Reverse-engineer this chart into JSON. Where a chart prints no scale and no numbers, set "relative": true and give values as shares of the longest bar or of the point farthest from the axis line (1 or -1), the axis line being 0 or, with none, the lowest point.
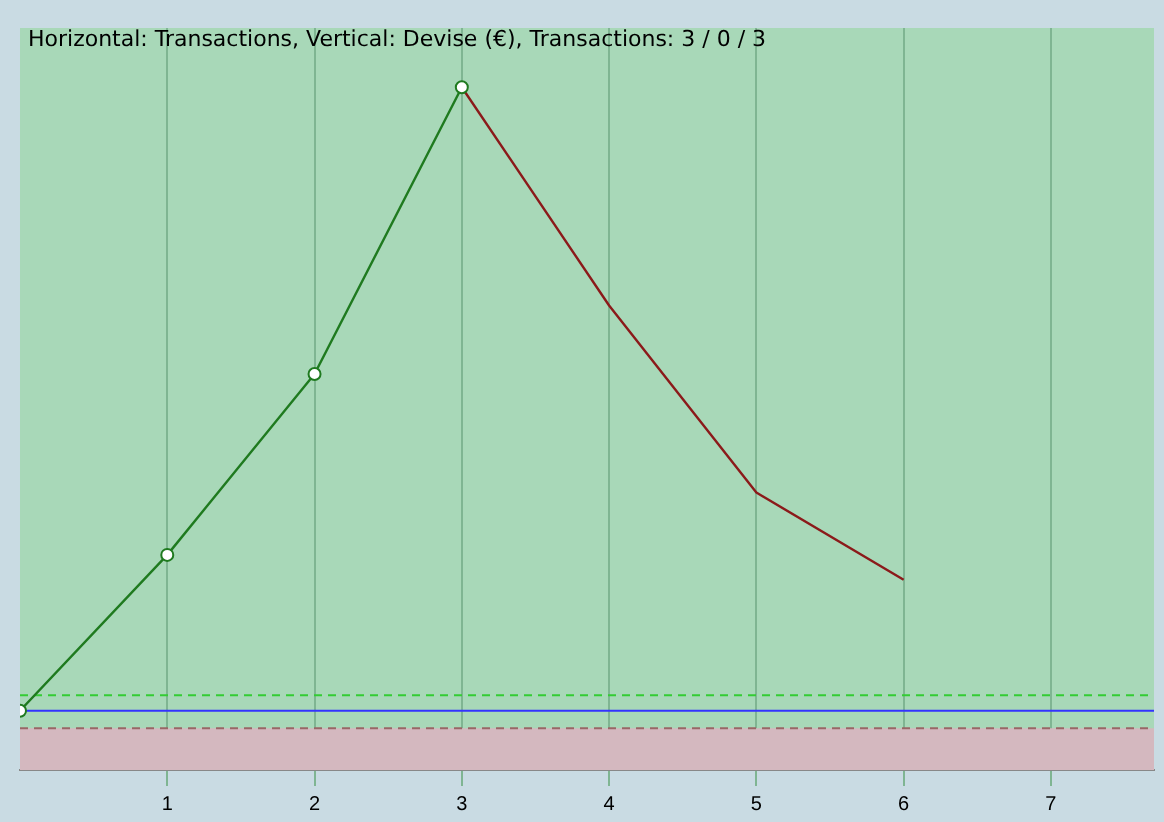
{
  "chart_data": {
    "type": "line",
    "title": "Horizontal: Transactions, Vertical: Devise (€), Transactions: 3 / 0 / 3",
    "relative": true,
    "xlim": [
      0,
      7.7
    ],
    "xticks": [
      1,
      2,
      3,
      4,
      5,
      6,
      7
    ],
    "grid": "x",
    "legend": false,
    "tick_labels": "x",
    "series": [
      {
        "color": "#1f7a1f",
        "marker": "circle",
        "x": [
          0,
          1,
          2,
          3
        ],
        "values": [
          0,
          0.25,
          0.54,
          1
        ]
      },
      {
        "color": "#8b1a1a",
        "marker": "none",
        "x": [
          3,
          4,
          5,
          6
        ],
        "values": [
          1,
          0.65,
          0.35,
          0.21
        ]
      }
    ],
    "ref_lines": [
      {
        "axis": "y",
        "value": 0.025,
        "color": "#33cc33",
        "line_style": "dashed"
      },
      {
        "axis": "y",
        "value": 0,
        "color": "#3333ff",
        "line_style": "solid"
      },
      {
        "axis": "y",
        "value": -0.028,
        "color": "#996666",
        "line_style": "dashed"
      }
    ],
    "bands": [
      {
        "axis": "y",
        "from": -0.095,
        "to": -0.028,
        "color": "#d4b8bf"
      }
    ]
  }
}
